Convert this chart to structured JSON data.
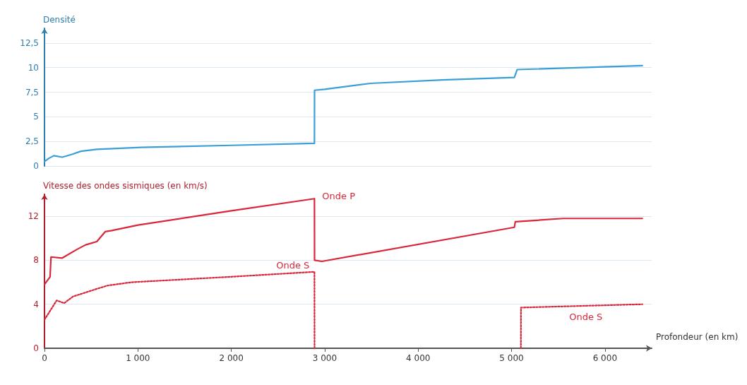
{
  "chart_data": [
    {
      "type": "line",
      "ylabel": "Densité",
      "xlim": [
        0,
        6500
      ],
      "ylim": [
        0,
        14
      ],
      "yticks": [
        0,
        {
          "value": 2.5,
          "label": "2,5"
        },
        5,
        {
          "value": 7.5,
          "label": "7,5"
        },
        10,
        {
          "value": 12.5,
          "label": "12,5"
        }
      ],
      "tick_labels": "y",
      "grid": "y",
      "marker": "none",
      "line_style": "solid",
      "series": [
        {
          "color": "#3a9fd6",
          "x": [
            0,
            50,
            100,
            190,
            300,
            390,
            560,
            1035,
            2000,
            2890,
            2891,
            3000,
            3490,
            4260,
            5030,
            5060,
            6400
          ],
          "values": [
            0.45,
            0.8,
            1.05,
            0.9,
            1.2,
            1.5,
            1.7,
            1.9,
            2.1,
            2.3,
            7.7,
            7.8,
            8.4,
            8.75,
            9.0,
            9.8,
            10.2
          ]
        }
      ]
    },
    {
      "type": "line",
      "ylabel": "Vitesse des ondes sismiques (en km/s)",
      "xlabel": "Profondeur (en km)",
      "xlim": [
        0,
        6500
      ],
      "xticks": [
        0,
        {
          "value": 1000,
          "label": "1 000"
        },
        {
          "value": 2000,
          "label": "2 000"
        },
        {
          "value": 3000,
          "label": "3 000"
        },
        {
          "value": 4000,
          "label": "4 000"
        },
        {
          "value": 5000,
          "label": "5 000"
        },
        {
          "value": 6000,
          "label": "6 000"
        }
      ],
      "ylim": [
        0,
        14
      ],
      "yticks": [
        0,
        4,
        8,
        12
      ],
      "grid": "y",
      "marker": "none",
      "series": [
        {
          "name": "Onde P",
          "color": "#d9263a",
          "line_style": "solid",
          "x": [
            0,
            60,
            70,
            190,
            350,
            440,
            560,
            650,
            720,
            1000,
            2000,
            2890,
            2891,
            2970,
            5030,
            5040,
            5550,
            6400
          ],
          "values": [
            5.8,
            6.5,
            8.3,
            8.2,
            9.0,
            9.4,
            9.7,
            10.6,
            10.7,
            11.2,
            12.5,
            13.6,
            8.0,
            7.9,
            11.0,
            11.5,
            11.8,
            11.8
          ]
        },
        {
          "name": "Onde S",
          "color": "#d9263a",
          "line_style": "dotted",
          "x": [
            0,
            60,
            130,
            210,
            305,
            560,
            675,
            930,
            2000,
            2890,
            2891
          ],
          "values": [
            2.6,
            3.4,
            4.35,
            4.1,
            4.7,
            5.4,
            5.7,
            6.0,
            6.5,
            6.95,
            0
          ]
        },
        {
          "name": "Onde S",
          "color": "#d9263a",
          "line_style": "dotted",
          "x": [
            5100,
            5101,
            6400
          ],
          "values": [
            0,
            3.7,
            4.0
          ]
        }
      ]
    }
  ]
}
